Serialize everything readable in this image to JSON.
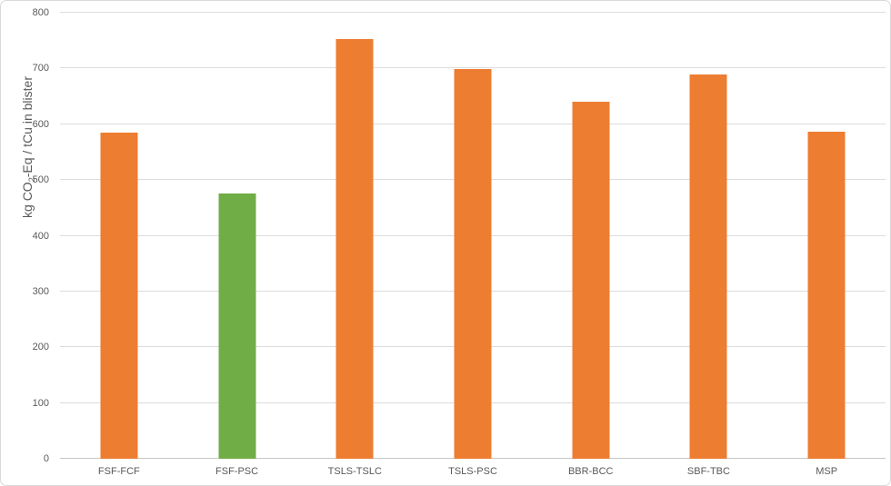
{
  "chart": {
    "y_axis_title": {
      "prefix": "kg CO",
      "sub": "2",
      "suffix": "-Eq / tCu in blister"
    }
  },
  "chart_data": {
    "type": "bar",
    "title": "",
    "categories": [
      "FSF-FCF",
      "FSF-PSC",
      "TSLS-TSLC",
      "TSLS-PSC",
      "BBR-BCC",
      "SBF-TBC",
      "MSP"
    ],
    "values": [
      585,
      476,
      753,
      699,
      641,
      690,
      587
    ],
    "bar_colors": [
      "#ED7D31",
      "#70AD47",
      "#ED7D31",
      "#ED7D31",
      "#ED7D31",
      "#ED7D31",
      "#ED7D31"
    ],
    "xlabel": "",
    "ylabel": "kg CO2-Eq / tCu in blister",
    "ylim": [
      0,
      800
    ],
    "ytick_step": 100,
    "y_ticks": [
      0,
      100,
      200,
      300,
      400,
      500,
      600,
      700,
      800
    ],
    "grid": "horizontal-only",
    "legend": "none",
    "colors": {
      "bar_default": "#ED7D31",
      "bar_highlight": "#70AD47",
      "gridline": "#DCDCDC",
      "axis_line": "#C6C6C6",
      "text": "#595959"
    }
  }
}
